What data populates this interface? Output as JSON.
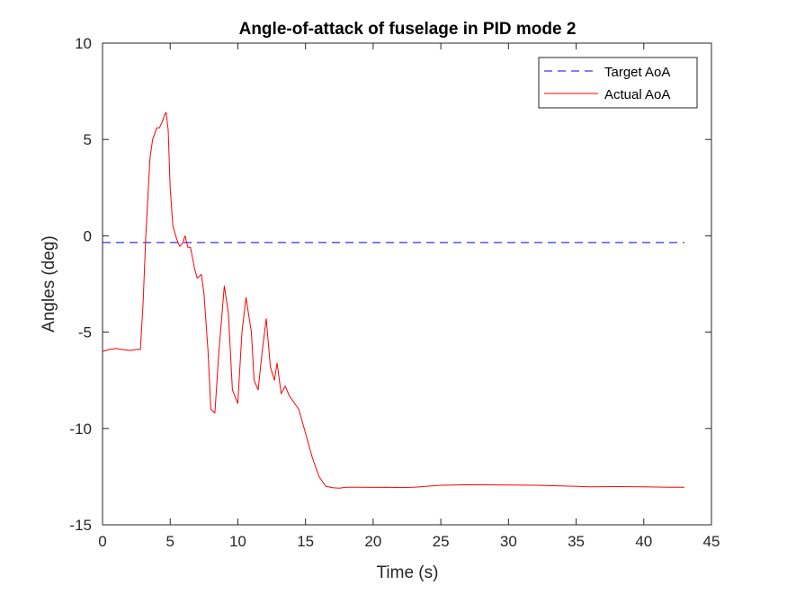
{
  "chart_data": {
    "type": "line",
    "title": "Angle-of-attack of fuselage in PID mode 2",
    "xlabel": "Time (s)",
    "ylabel": "Angles (deg)",
    "xlim": [
      0,
      45
    ],
    "ylim": [
      -15,
      10
    ],
    "xticks": [
      0,
      5,
      10,
      15,
      20,
      25,
      30,
      35,
      40,
      45
    ],
    "yticks": [
      -15,
      -10,
      -5,
      0,
      5,
      10
    ],
    "xtick_labels": [
      "0",
      "5",
      "10",
      "15",
      "20",
      "25",
      "30",
      "35",
      "40",
      "45"
    ],
    "ytick_labels": [
      "-15",
      "-10",
      "-5",
      "0",
      "5",
      "10"
    ],
    "grid": false,
    "legend_position": "top-right",
    "series": [
      {
        "name": "Target AoA",
        "color": "#0000ff",
        "style": "dashed",
        "x": [
          0,
          43
        ],
        "y": [
          -0.35,
          -0.35
        ]
      },
      {
        "name": "Actual AoA",
        "color": "#ff0000",
        "style": "solid",
        "x": [
          0,
          0.5,
          1.0,
          1.5,
          2.0,
          2.5,
          2.8,
          3.0,
          3.2,
          3.5,
          3.7,
          4.0,
          4.2,
          4.4,
          4.6,
          4.7,
          4.85,
          5.0,
          5.2,
          5.5,
          5.7,
          5.9,
          6.1,
          6.3,
          6.5,
          6.8,
          7.0,
          7.3,
          7.5,
          7.8,
          8.0,
          8.3,
          8.6,
          9.0,
          9.3,
          9.6,
          10.0,
          10.3,
          10.6,
          11.0,
          11.2,
          11.5,
          11.8,
          12.1,
          12.4,
          12.7,
          12.9,
          13.2,
          13.5,
          13.8,
          14.0,
          14.3,
          14.5,
          14.7,
          14.9,
          15.1,
          15.3,
          15.5,
          16.0,
          16.5,
          17.0,
          17.5,
          18.0,
          19.0,
          20.0,
          21.0,
          22.0,
          23.0,
          25.0,
          27.0,
          29.0,
          30.5,
          32.0,
          34.0,
          36.0,
          38.0,
          40.0,
          42.0,
          43.0
        ],
        "y": [
          -6.0,
          -5.9,
          -5.85,
          -5.9,
          -5.95,
          -5.9,
          -5.9,
          -3.5,
          0.0,
          4.0,
          5.0,
          5.6,
          5.6,
          5.9,
          6.3,
          6.4,
          5.5,
          2.5,
          0.5,
          -0.2,
          -0.55,
          -0.4,
          0.0,
          -0.6,
          -0.6,
          -1.7,
          -2.2,
          -2.0,
          -3.0,
          -6.0,
          -9.0,
          -9.2,
          -6.0,
          -2.6,
          -4.0,
          -8.0,
          -8.7,
          -5.0,
          -3.2,
          -5.0,
          -7.5,
          -8.0,
          -6.0,
          -4.3,
          -6.8,
          -7.5,
          -6.6,
          -8.2,
          -7.8,
          -8.3,
          -8.5,
          -8.8,
          -9.0,
          -9.5,
          -10.0,
          -10.5,
          -11.0,
          -11.5,
          -12.5,
          -13.0,
          -13.08,
          -13.1,
          -13.05,
          -13.05,
          -13.06,
          -13.05,
          -13.07,
          -13.05,
          -12.95,
          -12.92,
          -12.93,
          -12.94,
          -12.95,
          -12.98,
          -13.03,
          -13.02,
          -13.03,
          -13.05,
          -13.05
        ]
      }
    ]
  }
}
